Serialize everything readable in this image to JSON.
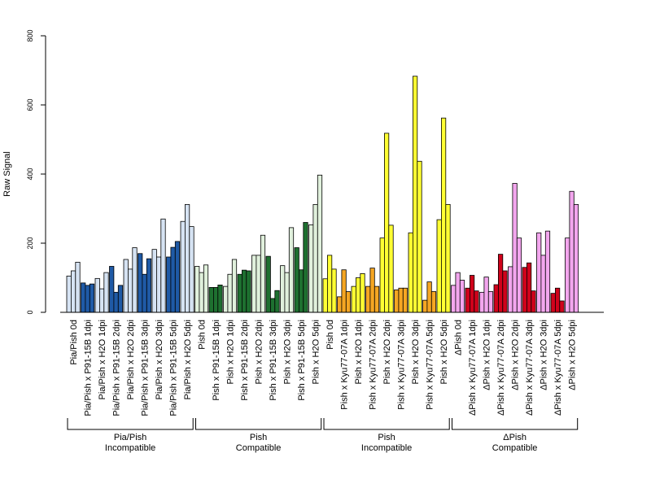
{
  "chart_data": {
    "type": "bar",
    "ylabel": "Raw Signal",
    "ylim": [
      0,
      800
    ],
    "yticks": [
      0,
      200,
      400,
      600,
      800
    ],
    "grid": false,
    "categories": [
      "Pia/Pish 0d",
      "Pia/Pish x P91-15B 1dpi",
      "Pia/Pish x H2O 1dpi",
      "Pia/Pish x P91-15B 2dpi",
      "Pia/Pish x H2O 2dpi",
      "Pia/Pish x P91-15B 3dpi",
      "Pia/Pish x H2O 3dpi",
      "Pia/Pish x P91-15B 5dpi",
      "Pia/Pish x H2O 5dpi",
      "Pish 0d",
      "Pish x P91-15B 1dpi",
      "Pish x H2O 1dpi",
      "Pish x P91-15B 2dpi",
      "Pish x H2O 2dpi",
      "Pish x P91-15B 3dpi",
      "Pish x H2O 3dpi",
      "Pish x P91-15B 5dpi",
      "Pish x H2O 5dpi",
      "Pish 0d",
      "Pish x Kyu77-07A 1dpi",
      "Pish x H2O 1dpi",
      "Pish x Kyu77-07A 2dpi",
      "Pish x H2O 2dpi",
      "Pish x Kyu77-07A 3dpi",
      "Pish x H2O 3dpi",
      "Pish x Kyu77-07A 5dpi",
      "Pish x H2O 5dpi",
      "ΔPish 0d",
      "ΔPish x Kyu77-07A 1dpi",
      "ΔPish x H2O 1dpi",
      "ΔPish x Kyu77-07A 2dpi",
      "ΔPish x H2O 2dpi",
      "ΔPish x Kyu77-07A 3dpi",
      "ΔPish x H2O 3dpi",
      "ΔPish x Kyu77-07A 5dpi",
      "ΔPish x H2O 5dpi"
    ],
    "values": [
      [
        105,
        120,
        145
      ],
      [
        85,
        78,
        82
      ],
      [
        98,
        68,
        115
      ],
      [
        133,
        58,
        78
      ],
      [
        153,
        125,
        187
      ],
      [
        170,
        110,
        155
      ],
      [
        182,
        160,
        270
      ],
      [
        160,
        188,
        205
      ],
      [
        263,
        312,
        248
      ],
      [
        133,
        115,
        137
      ],
      [
        72,
        72,
        79
      ],
      [
        75,
        110,
        153
      ],
      [
        110,
        122,
        120
      ],
      [
        165,
        165,
        223
      ],
      [
        162,
        40,
        63
      ],
      [
        135,
        115,
        245
      ],
      [
        187,
        123,
        260
      ],
      [
        253,
        312,
        397
      ],
      [
        97,
        165,
        125
      ],
      [
        45,
        123,
        60
      ],
      [
        75,
        100,
        112
      ],
      [
        75,
        128,
        75
      ],
      [
        215,
        518,
        252
      ],
      [
        65,
        70,
        70
      ],
      [
        230,
        683,
        437
      ],
      [
        35,
        88,
        60
      ],
      [
        268,
        562,
        312
      ],
      [
        78,
        115,
        93
      ],
      [
        70,
        107,
        62
      ],
      [
        58,
        102,
        60
      ],
      [
        80,
        168,
        120
      ],
      [
        132,
        373,
        215
      ],
      [
        130,
        143,
        62
      ],
      [
        230,
        165,
        235
      ],
      [
        55,
        70,
        33
      ],
      [
        215,
        350,
        312
      ]
    ],
    "category_colors": [
      "#d6e3f3",
      "#1f5aa6",
      "#d6e3f3",
      "#1f5aa6",
      "#d6e3f3",
      "#1f5aa6",
      "#d6e3f3",
      "#1f5aa6",
      "#d6e3f3",
      "#e0f0dc",
      "#1e7030",
      "#e0f0dc",
      "#1e7030",
      "#e0f0dc",
      "#1e7030",
      "#e0f0dc",
      "#1e7030",
      "#e0f0dc",
      "#ffff33",
      "#f5a623",
      "#ffff33",
      "#f5a623",
      "#ffff33",
      "#f5a623",
      "#ffff33",
      "#f5a623",
      "#ffff33",
      "#f3a6ee",
      "#d0021b",
      "#f3a6ee",
      "#d0021b",
      "#f3a6ee",
      "#d0021b",
      "#f3a6ee",
      "#d0021b",
      "#f3a6ee"
    ],
    "groups": [
      {
        "line1": "Pia/Pish",
        "line2": "Incompatible",
        "start": 0,
        "end": 8
      },
      {
        "line1": "Pish",
        "line2": "Compatible",
        "start": 9,
        "end": 17
      },
      {
        "line1": "Pish",
        "line2": "Incompatible",
        "start": 18,
        "end": 26
      },
      {
        "line1": "ΔPish",
        "line2": "Compatible",
        "start": 27,
        "end": 35
      }
    ]
  }
}
